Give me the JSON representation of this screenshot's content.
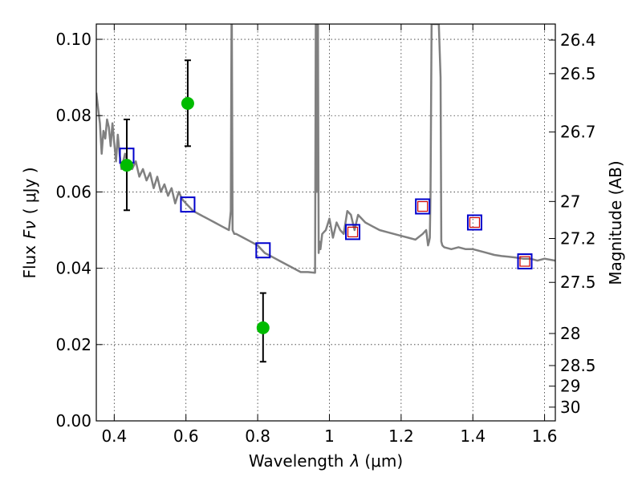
{
  "chart_data": {
    "type": "scatter",
    "xlabel": "Wavelength",
    "xlabel_symbol": "λ",
    "xlabel_unit": "(μm)",
    "ylabel": "Flux",
    "ylabel_symbol": "Fν",
    "ylabel_unit": "( μJy )",
    "y2label": "Magnitude (AB)",
    "xlim": [
      0.35,
      1.63
    ],
    "ylim": [
      0.0,
      0.104
    ],
    "grid": true,
    "x_ticks": [
      0.4,
      0.6,
      0.8,
      1.0,
      1.2,
      1.4,
      1.6
    ],
    "x_tick_labels": [
      "0.4",
      "0.6",
      "0.8",
      "1",
      "1.2",
      "1.4",
      "1.6"
    ],
    "y_ticks": [
      0.0,
      0.02,
      0.04,
      0.06,
      0.08,
      0.1
    ],
    "y_tick_labels": [
      "0.00",
      "0.02",
      "0.04",
      "0.06",
      "0.08",
      "0.10"
    ],
    "y2_ticks": [
      {
        "label": "26.4",
        "flux": 0.0998
      },
      {
        "label": "26.5",
        "flux": 0.091
      },
      {
        "label": "26.7",
        "flux": 0.0757
      },
      {
        "label": "27",
        "flux": 0.0575
      },
      {
        "label": "27.2",
        "flux": 0.0478
      },
      {
        "label": "27.5",
        "flux": 0.0363
      },
      {
        "label": "28",
        "flux": 0.0229
      },
      {
        "label": "28.5",
        "flux": 0.0145
      },
      {
        "label": "29",
        "flux": 0.0091
      },
      {
        "label": "30",
        "flux": 0.0036
      }
    ],
    "series": [
      {
        "kind": "spectrum",
        "color": "#808080",
        "x": [
          0.35,
          0.355,
          0.36,
          0.365,
          0.37,
          0.375,
          0.38,
          0.385,
          0.39,
          0.395,
          0.4,
          0.405,
          0.41,
          0.415,
          0.42,
          0.425,
          0.43,
          0.44,
          0.45,
          0.46,
          0.47,
          0.48,
          0.49,
          0.5,
          0.51,
          0.52,
          0.53,
          0.54,
          0.55,
          0.56,
          0.57,
          0.58,
          0.59,
          0.6,
          0.62,
          0.64,
          0.66,
          0.68,
          0.7,
          0.72,
          0.725,
          0.727,
          0.728,
          0.73,
          0.735,
          0.74,
          0.76,
          0.78,
          0.8,
          0.82,
          0.84,
          0.86,
          0.88,
          0.9,
          0.92,
          0.94,
          0.96,
          0.962,
          0.964,
          0.965,
          0.966,
          0.968,
          0.97,
          0.972,
          0.975,
          0.98,
          0.99,
          1.0,
          1.01,
          1.02,
          1.03,
          1.04,
          1.05,
          1.06,
          1.07,
          1.08,
          1.09,
          1.1,
          1.12,
          1.14,
          1.16,
          1.18,
          1.2,
          1.22,
          1.24,
          1.26,
          1.27,
          1.275,
          1.278,
          1.28,
          1.282,
          1.285,
          1.29,
          1.3,
          1.305,
          1.31,
          1.312,
          1.315,
          1.32,
          1.34,
          1.36,
          1.38,
          1.4,
          1.42,
          1.44,
          1.46,
          1.48,
          1.5,
          1.52,
          1.54,
          1.56,
          1.58,
          1.6,
          1.63
        ],
        "y": [
          0.086,
          0.082,
          0.078,
          0.07,
          0.076,
          0.074,
          0.079,
          0.077,
          0.072,
          0.078,
          0.073,
          0.068,
          0.075,
          0.07,
          0.066,
          0.068,
          0.07,
          0.067,
          0.066,
          0.068,
          0.064,
          0.066,
          0.063,
          0.065,
          0.061,
          0.064,
          0.06,
          0.062,
          0.059,
          0.061,
          0.057,
          0.06,
          0.058,
          0.057,
          0.055,
          0.054,
          0.053,
          0.052,
          0.051,
          0.05,
          0.055,
          0.104,
          0.104,
          0.05,
          0.049,
          0.049,
          0.048,
          0.047,
          0.046,
          0.044,
          0.043,
          0.042,
          0.041,
          0.04,
          0.039,
          0.039,
          0.0388,
          0.104,
          0.104,
          0.06,
          0.104,
          0.104,
          0.044,
          0.047,
          0.045,
          0.049,
          0.05,
          0.053,
          0.048,
          0.052,
          0.05,
          0.049,
          0.055,
          0.054,
          0.05,
          0.054,
          0.053,
          0.052,
          0.051,
          0.05,
          0.0495,
          0.049,
          0.0485,
          0.048,
          0.0475,
          0.049,
          0.05,
          0.046,
          0.047,
          0.048,
          0.06,
          0.104,
          0.104,
          0.104,
          0.104,
          0.09,
          0.047,
          0.046,
          0.0455,
          0.045,
          0.0455,
          0.045,
          0.045,
          0.0445,
          0.044,
          0.0435,
          0.0432,
          0.043,
          0.0428,
          0.0425,
          0.0425,
          0.042,
          0.0425,
          0.042
        ]
      },
      {
        "kind": "model-squares",
        "color": "#0000cc",
        "x": [
          0.435,
          0.605,
          0.815,
          1.065,
          1.26,
          1.405,
          1.545
        ],
        "y": [
          0.0695,
          0.0567,
          0.0447,
          0.0495,
          0.0562,
          0.052,
          0.0418
        ]
      },
      {
        "kind": "inner-squares",
        "color": "#cc0000",
        "x": [
          1.065,
          1.26,
          1.405,
          1.545
        ],
        "y": [
          0.0495,
          0.0562,
          0.052,
          0.0418
        ]
      },
      {
        "kind": "observed-points",
        "color": "#00bb00",
        "x": [
          0.435,
          0.605,
          0.815
        ],
        "y": [
          0.067,
          0.0832,
          0.0244
        ],
        "yerr_low": [
          0.0552,
          0.072,
          0.0155
        ],
        "yerr_high": [
          0.079,
          0.0945,
          0.0335
        ]
      }
    ]
  }
}
